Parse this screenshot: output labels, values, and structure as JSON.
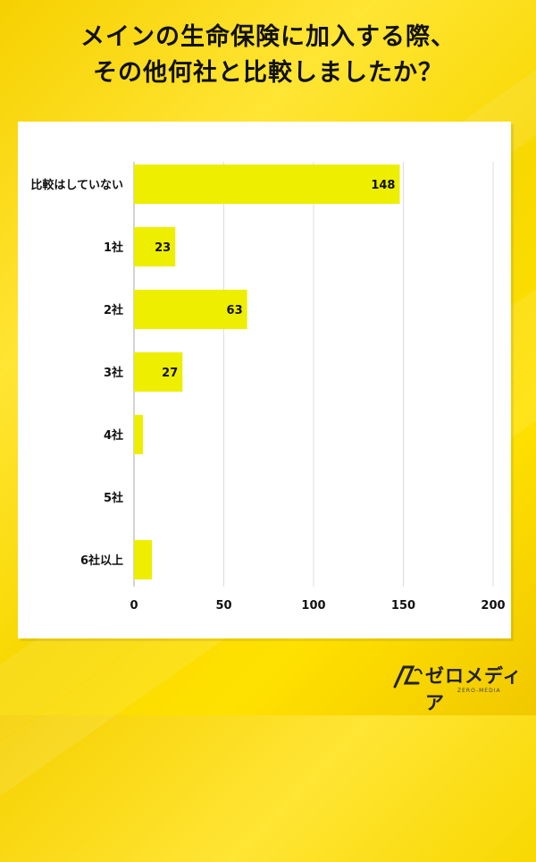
{
  "page": {
    "title_line1": "メインの生命保険に加入する際、",
    "title_line2": "その他何社と比較しましたか？",
    "brand": "ゼロメディア",
    "brand_sub": "ZERO-MEDIA"
  },
  "colors": {
    "bar": "#eeee00",
    "background": "#f8d800",
    "text": "#111111",
    "grid": "#dddddd"
  },
  "chart_data": {
    "type": "bar",
    "orientation": "horizontal",
    "categories": [
      "比較はしていない",
      "1社",
      "2社",
      "3社",
      "4社",
      "5社",
      "6社以上"
    ],
    "values": [
      148,
      23,
      63,
      27,
      5,
      0,
      10
    ],
    "data_labels": [
      "148",
      "23",
      "63",
      "27",
      "",
      "",
      ""
    ],
    "xlim": [
      0,
      200
    ],
    "xticks": [
      "0",
      "50",
      "100",
      "150",
      "200"
    ],
    "grid": true,
    "xlabel": "",
    "ylabel": ""
  }
}
